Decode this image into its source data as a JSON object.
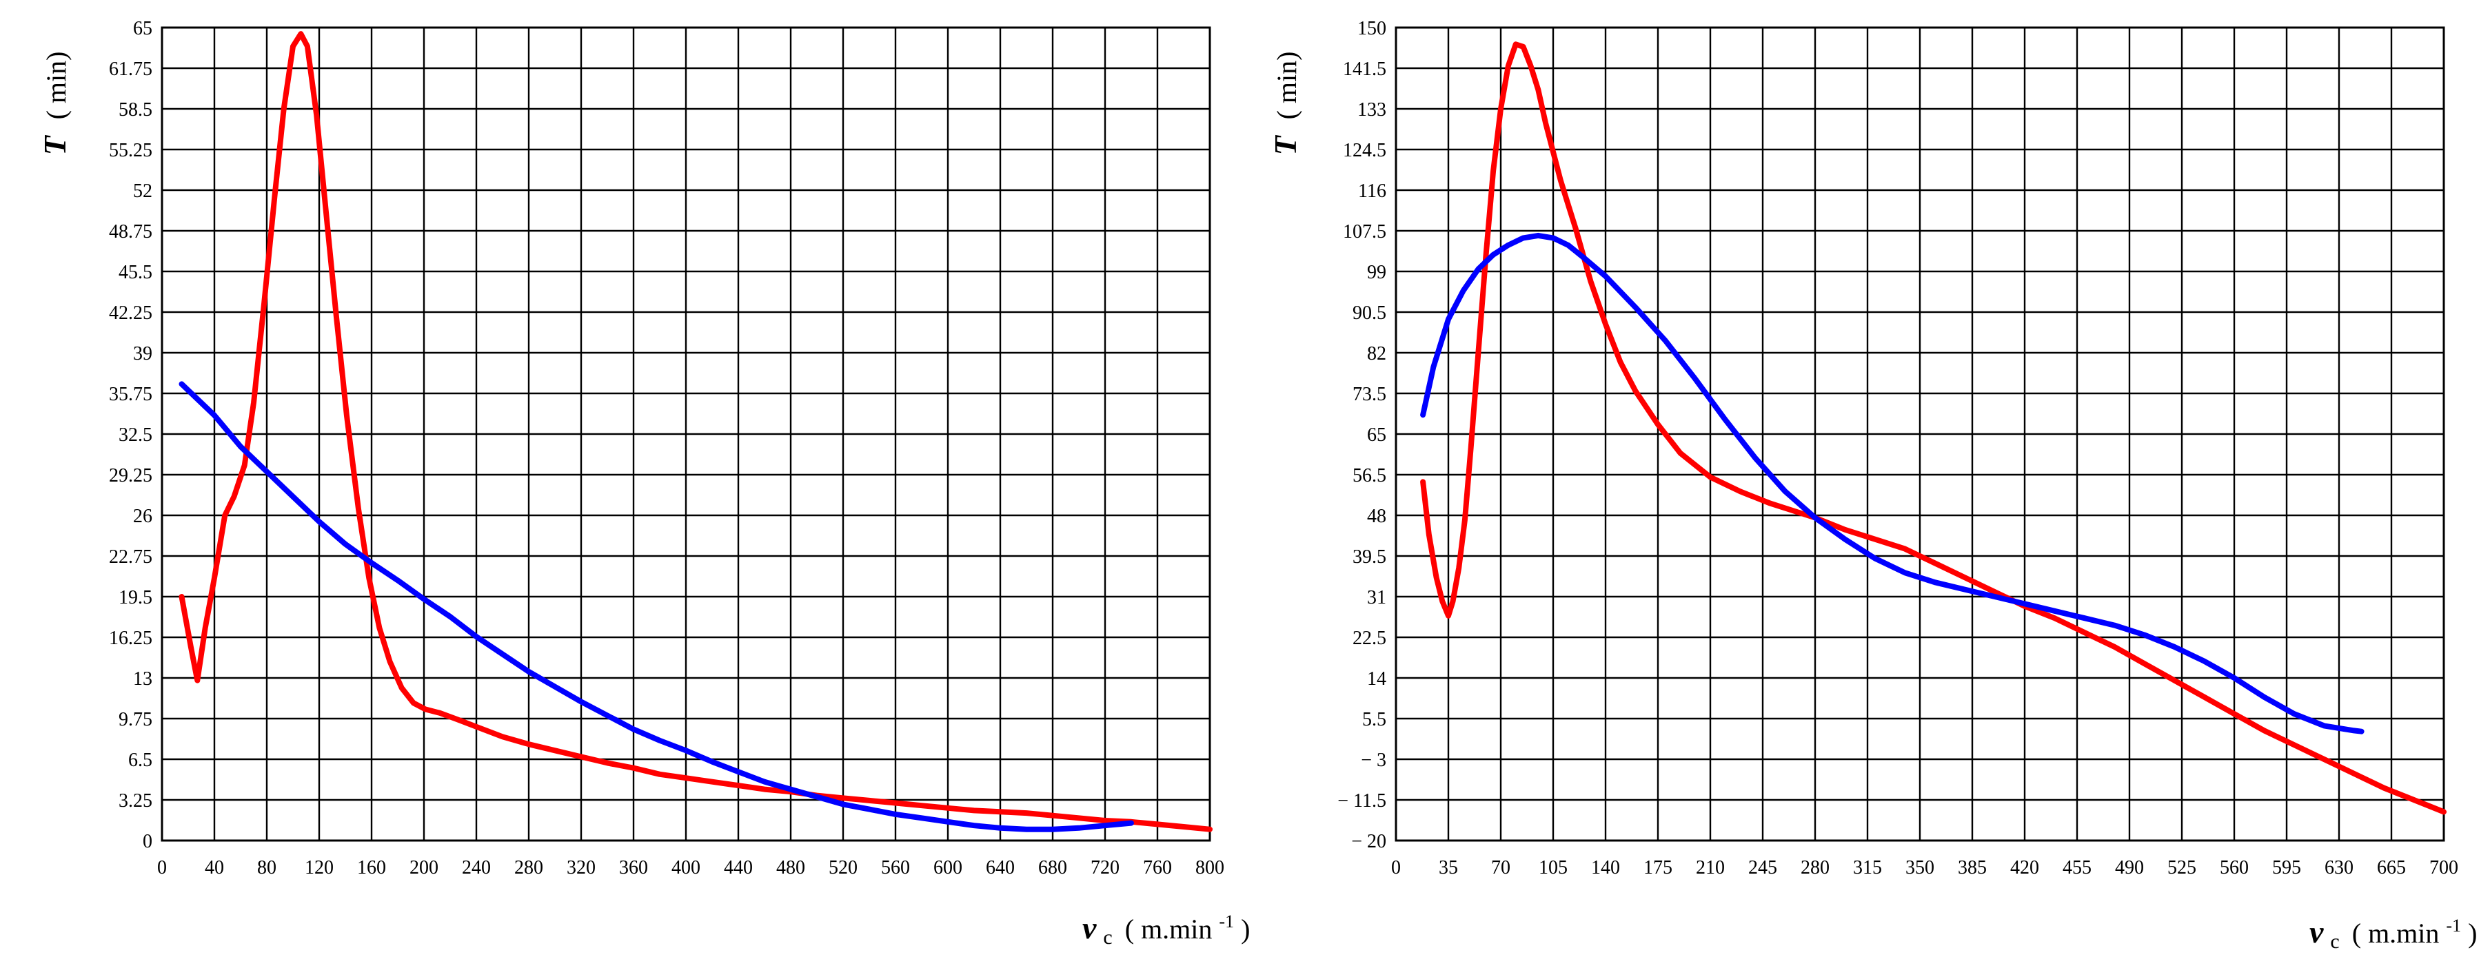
{
  "colors": {
    "red": "#ff0000",
    "blue": "#0000ff",
    "grid": "#000000"
  },
  "chart_data": [
    {
      "type": "line",
      "xlabel": "v",
      "xlabel_sub": "c",
      "xlabel_unit_open": "( m.min",
      "xlabel_unit_sup": "-1",
      "xlabel_unit_close": ")",
      "ylabel": "T",
      "ylabel_unit": "( min)",
      "xlim": [
        0,
        800
      ],
      "ylim": [
        0,
        65
      ],
      "xticks": [
        0,
        40,
        80,
        120,
        160,
        200,
        240,
        280,
        320,
        360,
        400,
        440,
        480,
        520,
        560,
        600,
        640,
        680,
        720,
        760,
        800
      ],
      "yticks": [
        0,
        3.25,
        6.5,
        9.75,
        13,
        16.25,
        19.5,
        22.75,
        26,
        29.25,
        32.5,
        35.75,
        39,
        42.25,
        45.5,
        48.75,
        52,
        55.25,
        58.5,
        61.75,
        65
      ],
      "series": [
        {
          "name": "red",
          "color": "#ff0000",
          "x": [
            15,
            22,
            27,
            33,
            40,
            48,
            55,
            63,
            70,
            78,
            86,
            93,
            100,
            106,
            111,
            118,
            125,
            133,
            141,
            150,
            158,
            166,
            174,
            183,
            192,
            201,
            212,
            225,
            240,
            260,
            280,
            300,
            320,
            340,
            360,
            380,
            400,
            420,
            440,
            460,
            480,
            500,
            520,
            540,
            560,
            580,
            600,
            620,
            640,
            660,
            680,
            700,
            720,
            740,
            760,
            780,
            800
          ],
          "y": [
            19.5,
            15.5,
            12.8,
            17,
            21,
            26,
            27.5,
            30,
            35,
            43,
            51.5,
            58.5,
            63.5,
            64.5,
            63.5,
            58,
            50.5,
            42,
            34,
            26.5,
            21,
            17,
            14.3,
            12.2,
            11,
            10.5,
            10.2,
            9.7,
            9.1,
            8.3,
            7.7,
            7.2,
            6.7,
            6.2,
            5.8,
            5.3,
            5,
            4.7,
            4.4,
            4.1,
            3.9,
            3.6,
            3.4,
            3.2,
            3.0,
            2.8,
            2.6,
            2.4,
            2.3,
            2.2,
            2.0,
            1.8,
            1.6,
            1.5,
            1.3,
            1.1,
            0.9
          ]
        },
        {
          "name": "blue",
          "color": "#0000ff",
          "x": [
            15,
            40,
            60,
            80,
            100,
            120,
            140,
            160,
            180,
            200,
            220,
            240,
            260,
            280,
            300,
            320,
            340,
            360,
            380,
            400,
            420,
            440,
            460,
            480,
            500,
            520,
            540,
            560,
            580,
            600,
            620,
            640,
            660,
            680,
            700,
            720,
            740
          ],
          "y": [
            36.5,
            34,
            31.5,
            29.5,
            27.5,
            25.5,
            23.7,
            22.2,
            20.8,
            19.3,
            17.9,
            16.3,
            14.9,
            13.5,
            12.3,
            11.1,
            10,
            8.9,
            8,
            7.2,
            6.3,
            5.5,
            4.7,
            4.1,
            3.5,
            2.9,
            2.5,
            2.1,
            1.8,
            1.5,
            1.2,
            1.0,
            0.9,
            0.9,
            1.0,
            1.2,
            1.4
          ]
        }
      ]
    },
    {
      "type": "line",
      "xlabel": "v",
      "xlabel_sub": "c",
      "xlabel_unit_open": "( m.min",
      "xlabel_unit_sup": "-1",
      "xlabel_unit_close": ")",
      "ylabel": "T",
      "ylabel_unit": "( min)",
      "xlim": [
        0,
        700
      ],
      "ylim": [
        -20,
        150
      ],
      "xticks": [
        0,
        35,
        70,
        105,
        140,
        175,
        210,
        245,
        280,
        315,
        350,
        385,
        420,
        455,
        490,
        525,
        560,
        595,
        630,
        665,
        700
      ],
      "yticks": [
        -20,
        -11.5,
        -3,
        5.5,
        14,
        22.5,
        31,
        39.5,
        48,
        56.5,
        65,
        73.5,
        82,
        90.5,
        99,
        107.5,
        116,
        124.5,
        133,
        141.5,
        150
      ],
      "ytick_labels": [
        "− 20",
        "− 11.5",
        "− 3",
        "5.5",
        "14",
        "22.5",
        "31",
        "39.5",
        "48",
        "56.5",
        "65",
        "73.5",
        "82",
        "90.5",
        "99",
        "107.5",
        "116",
        "124.5",
        "133",
        "141.5",
        "150"
      ],
      "series": [
        {
          "name": "red",
          "color": "#ff0000",
          "x": [
            18,
            22,
            27,
            31,
            35,
            38,
            42,
            46,
            50,
            55,
            60,
            65,
            70,
            75,
            80,
            85,
            90,
            95,
            100,
            105,
            110,
            115,
            120,
            130,
            140,
            150,
            160,
            175,
            190,
            210,
            230,
            250,
            270,
            280,
            300,
            320,
            340,
            360,
            380,
            400,
            420,
            440,
            460,
            480,
            500,
            520,
            540,
            560,
            580,
            600,
            620,
            640,
            660,
            680,
            700
          ],
          "y": [
            55,
            44,
            35,
            30,
            27,
            30,
            37,
            47,
            62,
            82,
            102,
            120,
            133,
            142,
            146.5,
            146,
            142,
            137,
            130,
            124,
            118,
            113,
            108,
            97,
            88,
            80,
            74,
            67,
            61,
            56,
            53,
            50.5,
            48.5,
            47.5,
            45,
            43,
            41,
            38,
            35,
            32,
            29,
            26.5,
            23.5,
            20.5,
            17,
            13.5,
            10,
            6.5,
            3,
            0,
            -3,
            -6,
            -9,
            -11.5,
            -14
          ]
        },
        {
          "name": "blue",
          "color": "#0000ff",
          "x": [
            18,
            25,
            35,
            45,
            55,
            65,
            75,
            85,
            95,
            105,
            115,
            125,
            140,
            160,
            180,
            200,
            220,
            240,
            260,
            280,
            300,
            320,
            340,
            360,
            380,
            400,
            420,
            440,
            460,
            480,
            500,
            520,
            540,
            560,
            580,
            600,
            620,
            640,
            645
          ],
          "y": [
            69,
            79,
            89,
            95,
            99.5,
            102.5,
            104.5,
            106,
            106.5,
            106,
            104.5,
            102,
            98,
            91.5,
            84.5,
            76.5,
            68,
            60,
            53,
            47.5,
            43,
            39,
            36,
            34,
            32.5,
            31,
            29.5,
            28,
            26.5,
            25,
            23,
            20.5,
            17.5,
            14,
            10,
            6.5,
            4,
            3,
            2.8
          ]
        }
      ]
    }
  ]
}
